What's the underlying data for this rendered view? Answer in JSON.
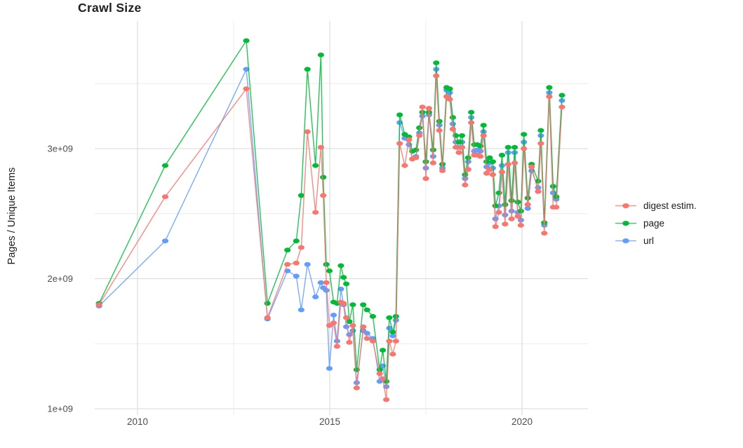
{
  "header": {
    "title": "Crawl Size"
  },
  "y_axis": {
    "label": "Pages / Unique Items",
    "tick_labels": [
      "1e+09",
      "2e+09",
      "3e+09"
    ]
  },
  "x_axis": {
    "tick_labels": [
      "2010",
      "2015",
      "2020"
    ]
  },
  "legend": {
    "items": [
      {
        "label": "digest estim.",
        "color": "#F8766D"
      },
      {
        "label": "page",
        "color": "#00BA38"
      },
      {
        "label": "url",
        "color": "#619CFF"
      }
    ]
  },
  "chart_data": {
    "type": "line",
    "title": "Crawl Size",
    "xlabel": "",
    "ylabel": "Pages / Unique Items",
    "units": "count (1e9 = billions)",
    "xlim": [
      2008.9,
      2021.7
    ],
    "ylim_e9": [
      0.95,
      3.98
    ],
    "grid": "major+minor",
    "legend_position": "right",
    "x_ticks": [
      2010,
      2015,
      2020
    ],
    "x_tick_labels": [
      "2010",
      "2015",
      "2020"
    ],
    "x_minor": [
      2012.5,
      2017.5
    ],
    "y_ticks_e9": [
      1,
      2,
      3
    ],
    "y_tick_labels": [
      "1e+09",
      "2e+09",
      "3e+09"
    ],
    "y_minor_e9": [
      1.5,
      2.5,
      3.5
    ],
    "x": [
      2009.0,
      2010.72,
      2012.83,
      2013.38,
      2013.9,
      2014.13,
      2014.26,
      2014.42,
      2014.63,
      2014.77,
      2014.83,
      2014.91,
      2014.99,
      2015.1,
      2015.19,
      2015.29,
      2015.36,
      2015.43,
      2015.51,
      2015.6,
      2015.7,
      2015.87,
      2015.97,
      2016.12,
      2016.3,
      2016.38,
      2016.47,
      2016.55,
      2016.64,
      2016.72,
      2016.82,
      2016.95,
      2017.06,
      2017.15,
      2017.24,
      2017.33,
      2017.41,
      2017.5,
      2017.58,
      2017.69,
      2017.77,
      2017.85,
      2017.93,
      2018.04,
      2018.12,
      2018.2,
      2018.28,
      2018.36,
      2018.44,
      2018.52,
      2018.6,
      2018.68,
      2018.76,
      2018.84,
      2018.92,
      2019.0,
      2019.08,
      2019.16,
      2019.24,
      2019.31,
      2019.4,
      2019.48,
      2019.56,
      2019.64,
      2019.73,
      2019.81,
      2019.89,
      2019.97,
      2020.05,
      2020.15,
      2020.25,
      2020.42,
      2020.49,
      2020.58,
      2020.71,
      2020.81,
      2020.89,
      2021.04
    ],
    "series": [
      {
        "name": "digest estim.",
        "color": "#F8766D",
        "values_e9": [
          1.8,
          2.63,
          3.46,
          1.7,
          2.11,
          2.12,
          2.24,
          3.13,
          2.51,
          3.01,
          2.64,
          1.97,
          1.64,
          1.66,
          1.48,
          1.82,
          1.81,
          1.7,
          1.51,
          1.64,
          1.16,
          1.63,
          1.54,
          1.52,
          1.27,
          1.23,
          1.07,
          1.52,
          1.42,
          1.52,
          3.04,
          2.87,
          3.07,
          2.92,
          2.93,
          3.1,
          3.32,
          2.77,
          3.31,
          2.89,
          3.56,
          3.14,
          2.83,
          3.4,
          3.38,
          3.15,
          3.01,
          2.97,
          3.01,
          2.72,
          2.84,
          3.2,
          2.95,
          2.95,
          2.94,
          3.1,
          2.81,
          2.84,
          2.8,
          2.4,
          2.51,
          2.82,
          2.42,
          2.88,
          2.46,
          2.89,
          2.48,
          2.41,
          3.0,
          2.57,
          2.86,
          2.67,
          3.04,
          2.35,
          3.4,
          2.55,
          2.55,
          3.32
        ]
      },
      {
        "name": "page",
        "color": "#00BA38",
        "values_e9": [
          1.81,
          2.87,
          3.83,
          1.81,
          2.22,
          2.29,
          2.64,
          3.61,
          2.87,
          3.72,
          2.78,
          2.11,
          2.06,
          1.82,
          1.81,
          2.1,
          2.01,
          1.96,
          1.67,
          1.8,
          1.3,
          1.8,
          1.76,
          1.71,
          1.3,
          1.45,
          1.21,
          1.7,
          1.59,
          1.71,
          3.26,
          3.11,
          3.09,
          2.98,
          2.99,
          3.16,
          3.28,
          2.9,
          3.28,
          2.99,
          3.66,
          3.21,
          2.88,
          3.47,
          3.46,
          3.24,
          3.1,
          3.05,
          3.1,
          2.8,
          2.93,
          3.28,
          3.03,
          3.03,
          3.02,
          3.18,
          2.9,
          2.93,
          2.9,
          2.56,
          2.66,
          2.95,
          2.57,
          3.01,
          2.6,
          3.01,
          2.59,
          2.52,
          3.11,
          2.62,
          2.88,
          2.75,
          3.14,
          2.43,
          3.47,
          2.71,
          2.63,
          3.41
        ]
      },
      {
        "name": "url",
        "color": "#619CFF",
        "values_e9": [
          1.79,
          2.29,
          3.61,
          1.69,
          2.06,
          2.02,
          1.76,
          2.11,
          1.86,
          1.97,
          1.93,
          1.91,
          1.31,
          1.72,
          1.52,
          1.92,
          1.8,
          1.63,
          1.57,
          1.6,
          1.2,
          1.6,
          1.58,
          1.54,
          1.21,
          1.33,
          1.17,
          1.62,
          1.56,
          1.68,
          3.2,
          3.08,
          3.03,
          2.92,
          2.94,
          3.12,
          3.25,
          2.85,
          3.26,
          2.94,
          3.61,
          3.18,
          2.85,
          3.45,
          3.43,
          3.19,
          3.05,
          3.01,
          3.05,
          2.77,
          2.9,
          3.24,
          2.98,
          2.99,
          2.98,
          3.13,
          2.86,
          2.89,
          2.85,
          2.46,
          2.56,
          2.87,
          2.49,
          2.97,
          2.52,
          2.97,
          2.51,
          2.45,
          3.05,
          2.54,
          2.83,
          2.7,
          3.1,
          2.41,
          3.43,
          2.66,
          2.61,
          3.37
        ]
      }
    ]
  },
  "style": {
    "grid_major_color": "#d9d9d9",
    "grid_minor_color": "#ececec",
    "tick_text_color": "#4d4d4d"
  }
}
